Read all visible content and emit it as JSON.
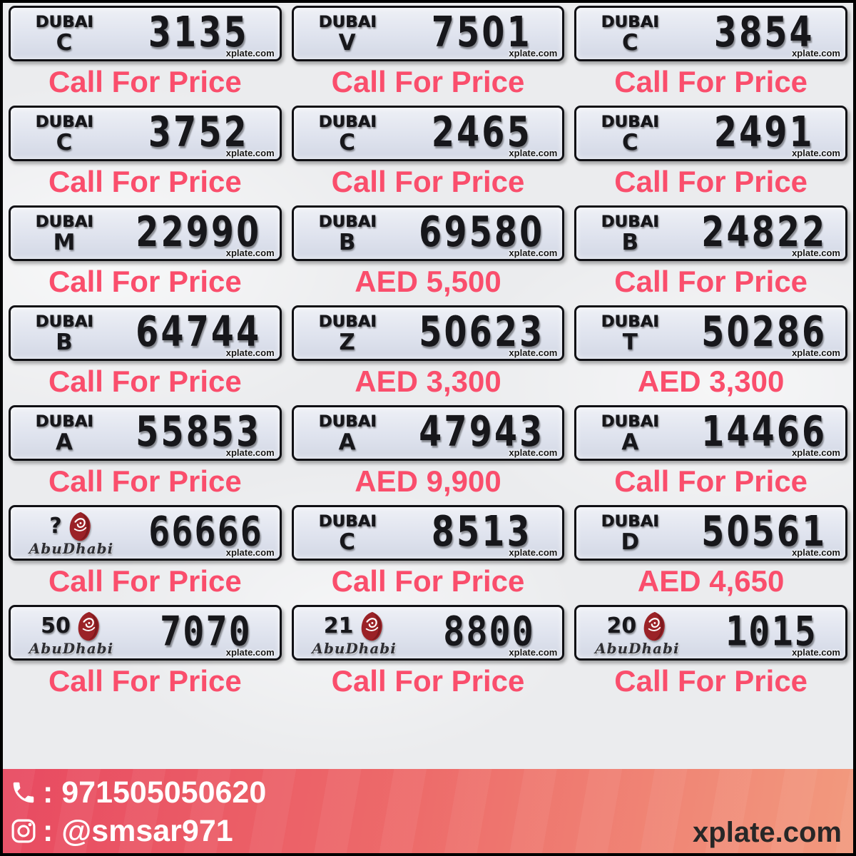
{
  "page": {
    "background_color": "#ebecee",
    "accent_pink": "#fa4e6c",
    "plate_background": "#dfe3ee",
    "abudhabi_red": "#9b2227",
    "footer_gradient_start": "#e84a61",
    "footer_gradient_end": "#f29a7e"
  },
  "branding": {
    "dubai_logo": "DUBAI",
    "abudhabi_script": "AbuDhabi",
    "watermark": "xplate.com"
  },
  "plates": [
    {
      "emirate": "dubai",
      "code": "C",
      "number": "3135",
      "price": "Call For Price"
    },
    {
      "emirate": "dubai",
      "code": "V",
      "number": "7501",
      "price": "Call For Price"
    },
    {
      "emirate": "dubai",
      "code": "C",
      "number": "3854",
      "price": "Call For Price"
    },
    {
      "emirate": "dubai",
      "code": "C",
      "number": "3752",
      "price": "Call For Price"
    },
    {
      "emirate": "dubai",
      "code": "C",
      "number": "2465",
      "price": "Call For Price"
    },
    {
      "emirate": "dubai",
      "code": "C",
      "number": "2491",
      "price": "Call For Price"
    },
    {
      "emirate": "dubai",
      "code": "M",
      "number": "22990",
      "price": "Call For Price"
    },
    {
      "emirate": "dubai",
      "code": "B",
      "number": "69580",
      "price": "AED 5,500"
    },
    {
      "emirate": "dubai",
      "code": "B",
      "number": "24822",
      "price": "Call For Price"
    },
    {
      "emirate": "dubai",
      "code": "B",
      "number": "64744",
      "price": "Call For Price"
    },
    {
      "emirate": "dubai",
      "code": "Z",
      "number": "50623",
      "price": "AED 3,300"
    },
    {
      "emirate": "dubai",
      "code": "T",
      "number": "50286",
      "price": "AED 3,300"
    },
    {
      "emirate": "dubai",
      "code": "A",
      "number": "55853",
      "price": "Call For Price"
    },
    {
      "emirate": "dubai",
      "code": "A",
      "number": "47943",
      "price": "AED 9,900"
    },
    {
      "emirate": "dubai",
      "code": "A",
      "number": "14466",
      "price": "Call For Price"
    },
    {
      "emirate": "abudhabi",
      "code": "?",
      "number": "66666",
      "price": "Call For Price"
    },
    {
      "emirate": "dubai",
      "code": "C",
      "number": "8513",
      "price": "Call For Price"
    },
    {
      "emirate": "dubai",
      "code": "D",
      "number": "50561",
      "price": "AED 4,650"
    },
    {
      "emirate": "abudhabi",
      "code": "50",
      "number": "7070",
      "price": "Call For Price"
    },
    {
      "emirate": "abudhabi",
      "code": "21",
      "number": "8800",
      "price": "Call For Price"
    },
    {
      "emirate": "abudhabi",
      "code": "20",
      "number": "1015",
      "price": "Call For Price"
    }
  ],
  "footer": {
    "phone": ": 971505050620",
    "instagram": ": @smsar971",
    "website": "xplate.com",
    "icons": {
      "phone": "phone-icon",
      "instagram": "instagram-icon"
    }
  }
}
